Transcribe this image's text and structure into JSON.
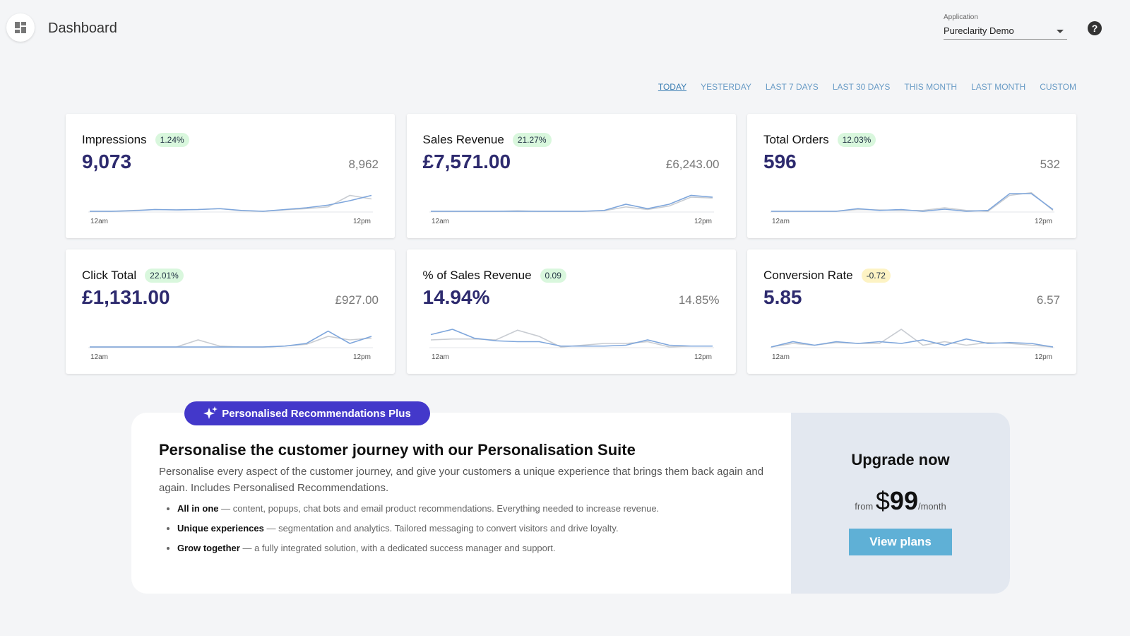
{
  "header": {
    "title": "Dashboard",
    "app_label": "Application",
    "app_value": "Pureclarity Demo"
  },
  "tabs": [
    "TODAY",
    "YESTERDAY",
    "LAST 7 DAYS",
    "LAST 30 DAYS",
    "THIS MONTH",
    "LAST MONTH",
    "CUSTOM"
  ],
  "active_tab": 0,
  "sparkline": {
    "current_color": "#7ea6dc",
    "previous_color": "#c8ccd2",
    "max": 10
  },
  "cards": [
    {
      "title": "Impressions",
      "change": "1.24%",
      "change_color": "#d9f7dd",
      "value": "9,073",
      "previous": "8,962",
      "start_label": "12am",
      "end_label": "12pm",
      "current": [
        0,
        0,
        0.3,
        1,
        0.8,
        1,
        1.5,
        0.5,
        0,
        1,
        2,
        3.5,
        6,
        9
      ],
      "previous_series": [
        0,
        0,
        0.5,
        1,
        0.8,
        1,
        1.5,
        0.3,
        0,
        0.8,
        1.5,
        2.5,
        9,
        7
      ]
    },
    {
      "title": "Sales Revenue",
      "change": "21.27%",
      "change_color": "#d9f7dd",
      "value": "£7,571.00",
      "previous": "£6,243.00",
      "start_label": "12am",
      "end_label": "12pm",
      "current": [
        0,
        0,
        0,
        0,
        0,
        0,
        0,
        0,
        0.5,
        4,
        1.5,
        4,
        9,
        8
      ],
      "previous_series": [
        0,
        0,
        0,
        0,
        0.3,
        0,
        0,
        0,
        0.3,
        2.5,
        1,
        3,
        8,
        7.5
      ]
    },
    {
      "title": "Total Orders",
      "change": "12.03%",
      "change_color": "#d9f7dd",
      "value": "596",
      "previous": "532",
      "start_label": "12am",
      "end_label": "12pm",
      "current": [
        0,
        0,
        0,
        0,
        1.5,
        0.5,
        1,
        0,
        1.2,
        0,
        0.5,
        10,
        10,
        1
      ],
      "previous_series": [
        0,
        0,
        0,
        0,
        1,
        0.8,
        0.5,
        0.5,
        2,
        0.5,
        0,
        9,
        10.5,
        0.5
      ]
    },
    {
      "title": "Click Total",
      "change": "22.01%",
      "change_color": "#d9f7dd",
      "value": "£1,131.00",
      "previous": "£927.00",
      "start_label": "12am",
      "end_label": "12pm",
      "current": [
        0,
        0,
        0,
        0,
        0,
        0,
        0,
        0,
        0,
        0.5,
        2,
        9,
        2,
        6
      ],
      "previous_series": [
        0,
        0,
        0,
        0,
        0,
        4,
        0.5,
        0,
        0,
        0.5,
        1.5,
        6,
        4,
        5
      ]
    },
    {
      "title": "% of Sales Revenue",
      "change": "0.09",
      "change_color": "#d9f7dd",
      "value": "14.94%",
      "previous": "14.85%",
      "start_label": "12am",
      "end_label": "12pm",
      "current": [
        7,
        10,
        5,
        3.5,
        3,
        3,
        0.5,
        0.5,
        0.5,
        1,
        4,
        1,
        0.5,
        0.5
      ],
      "previous_series": [
        4,
        4.5,
        4.5,
        4,
        9.5,
        6,
        0,
        1,
        2,
        2,
        3,
        0,
        0.5,
        0.5
      ]
    },
    {
      "title": "Conversion Rate",
      "change": "-0.72",
      "change_color": "#fdf3c4",
      "value": "5.85",
      "previous": "6.57",
      "start_label": "12am",
      "end_label": "12pm",
      "current": [
        0,
        3,
        1,
        3,
        2,
        3,
        2,
        4,
        1,
        4.5,
        2,
        2.5,
        2,
        0
      ],
      "previous_series": [
        0,
        2,
        1,
        2.5,
        2,
        2,
        10,
        1,
        3,
        1,
        2.5,
        2,
        1,
        0
      ]
    }
  ],
  "promo": {
    "badge": "Personalised Recommendations Plus",
    "heading": "Personalise the customer journey with our Personalisation Suite",
    "body": "Personalise every aspect of the customer journey, and give your customers a unique experience that brings them back again and again. Includes Personalised Recommendations.",
    "bullets": [
      {
        "strong": "All in one",
        "text": "— content, popups, chat bots and email product recommendations. Everything needed to increase revenue."
      },
      {
        "strong": "Unique experiences",
        "text": "— segmentation and analytics. Tailored messaging to convert visitors and drive loyalty."
      },
      {
        "strong": "Grow together",
        "text": "— a fully integrated solution, with a dedicated success manager and support."
      }
    ],
    "upgrade_title": "Upgrade now",
    "from": "from",
    "currency": "$",
    "price": "99",
    "per": "/month",
    "button": "View plans"
  }
}
